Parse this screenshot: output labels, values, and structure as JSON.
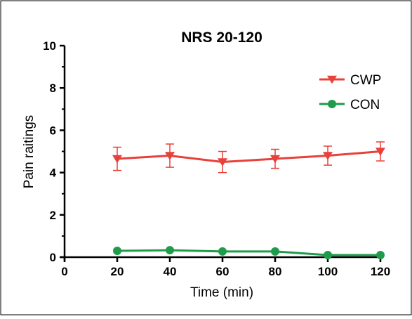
{
  "chart_data": {
    "type": "line",
    "title": "NRS 20-120",
    "xlabel": "Time (min)",
    "ylabel": "Pain raitings",
    "xlim": [
      0,
      120
    ],
    "ylim": [
      0,
      10
    ],
    "xticks": [
      0,
      20,
      40,
      60,
      80,
      100,
      120
    ],
    "yticks": [
      0,
      2,
      4,
      6,
      8,
      10
    ],
    "x": [
      20,
      40,
      60,
      80,
      100,
      120
    ],
    "legend_position": "top-right",
    "grid": false,
    "series": [
      {
        "name": "CWP",
        "color": "#e8403a",
        "marker": "triangle-down",
        "values": [
          4.65,
          4.8,
          4.5,
          4.65,
          4.8,
          5.0
        ],
        "error": [
          0.55,
          0.55,
          0.5,
          0.45,
          0.45,
          0.45
        ]
      },
      {
        "name": "CON",
        "color": "#1f9b4b",
        "marker": "circle",
        "values": [
          0.3,
          0.33,
          0.27,
          0.27,
          0.1,
          0.1
        ],
        "error": [
          0,
          0,
          0,
          0,
          0,
          0
        ]
      }
    ]
  }
}
